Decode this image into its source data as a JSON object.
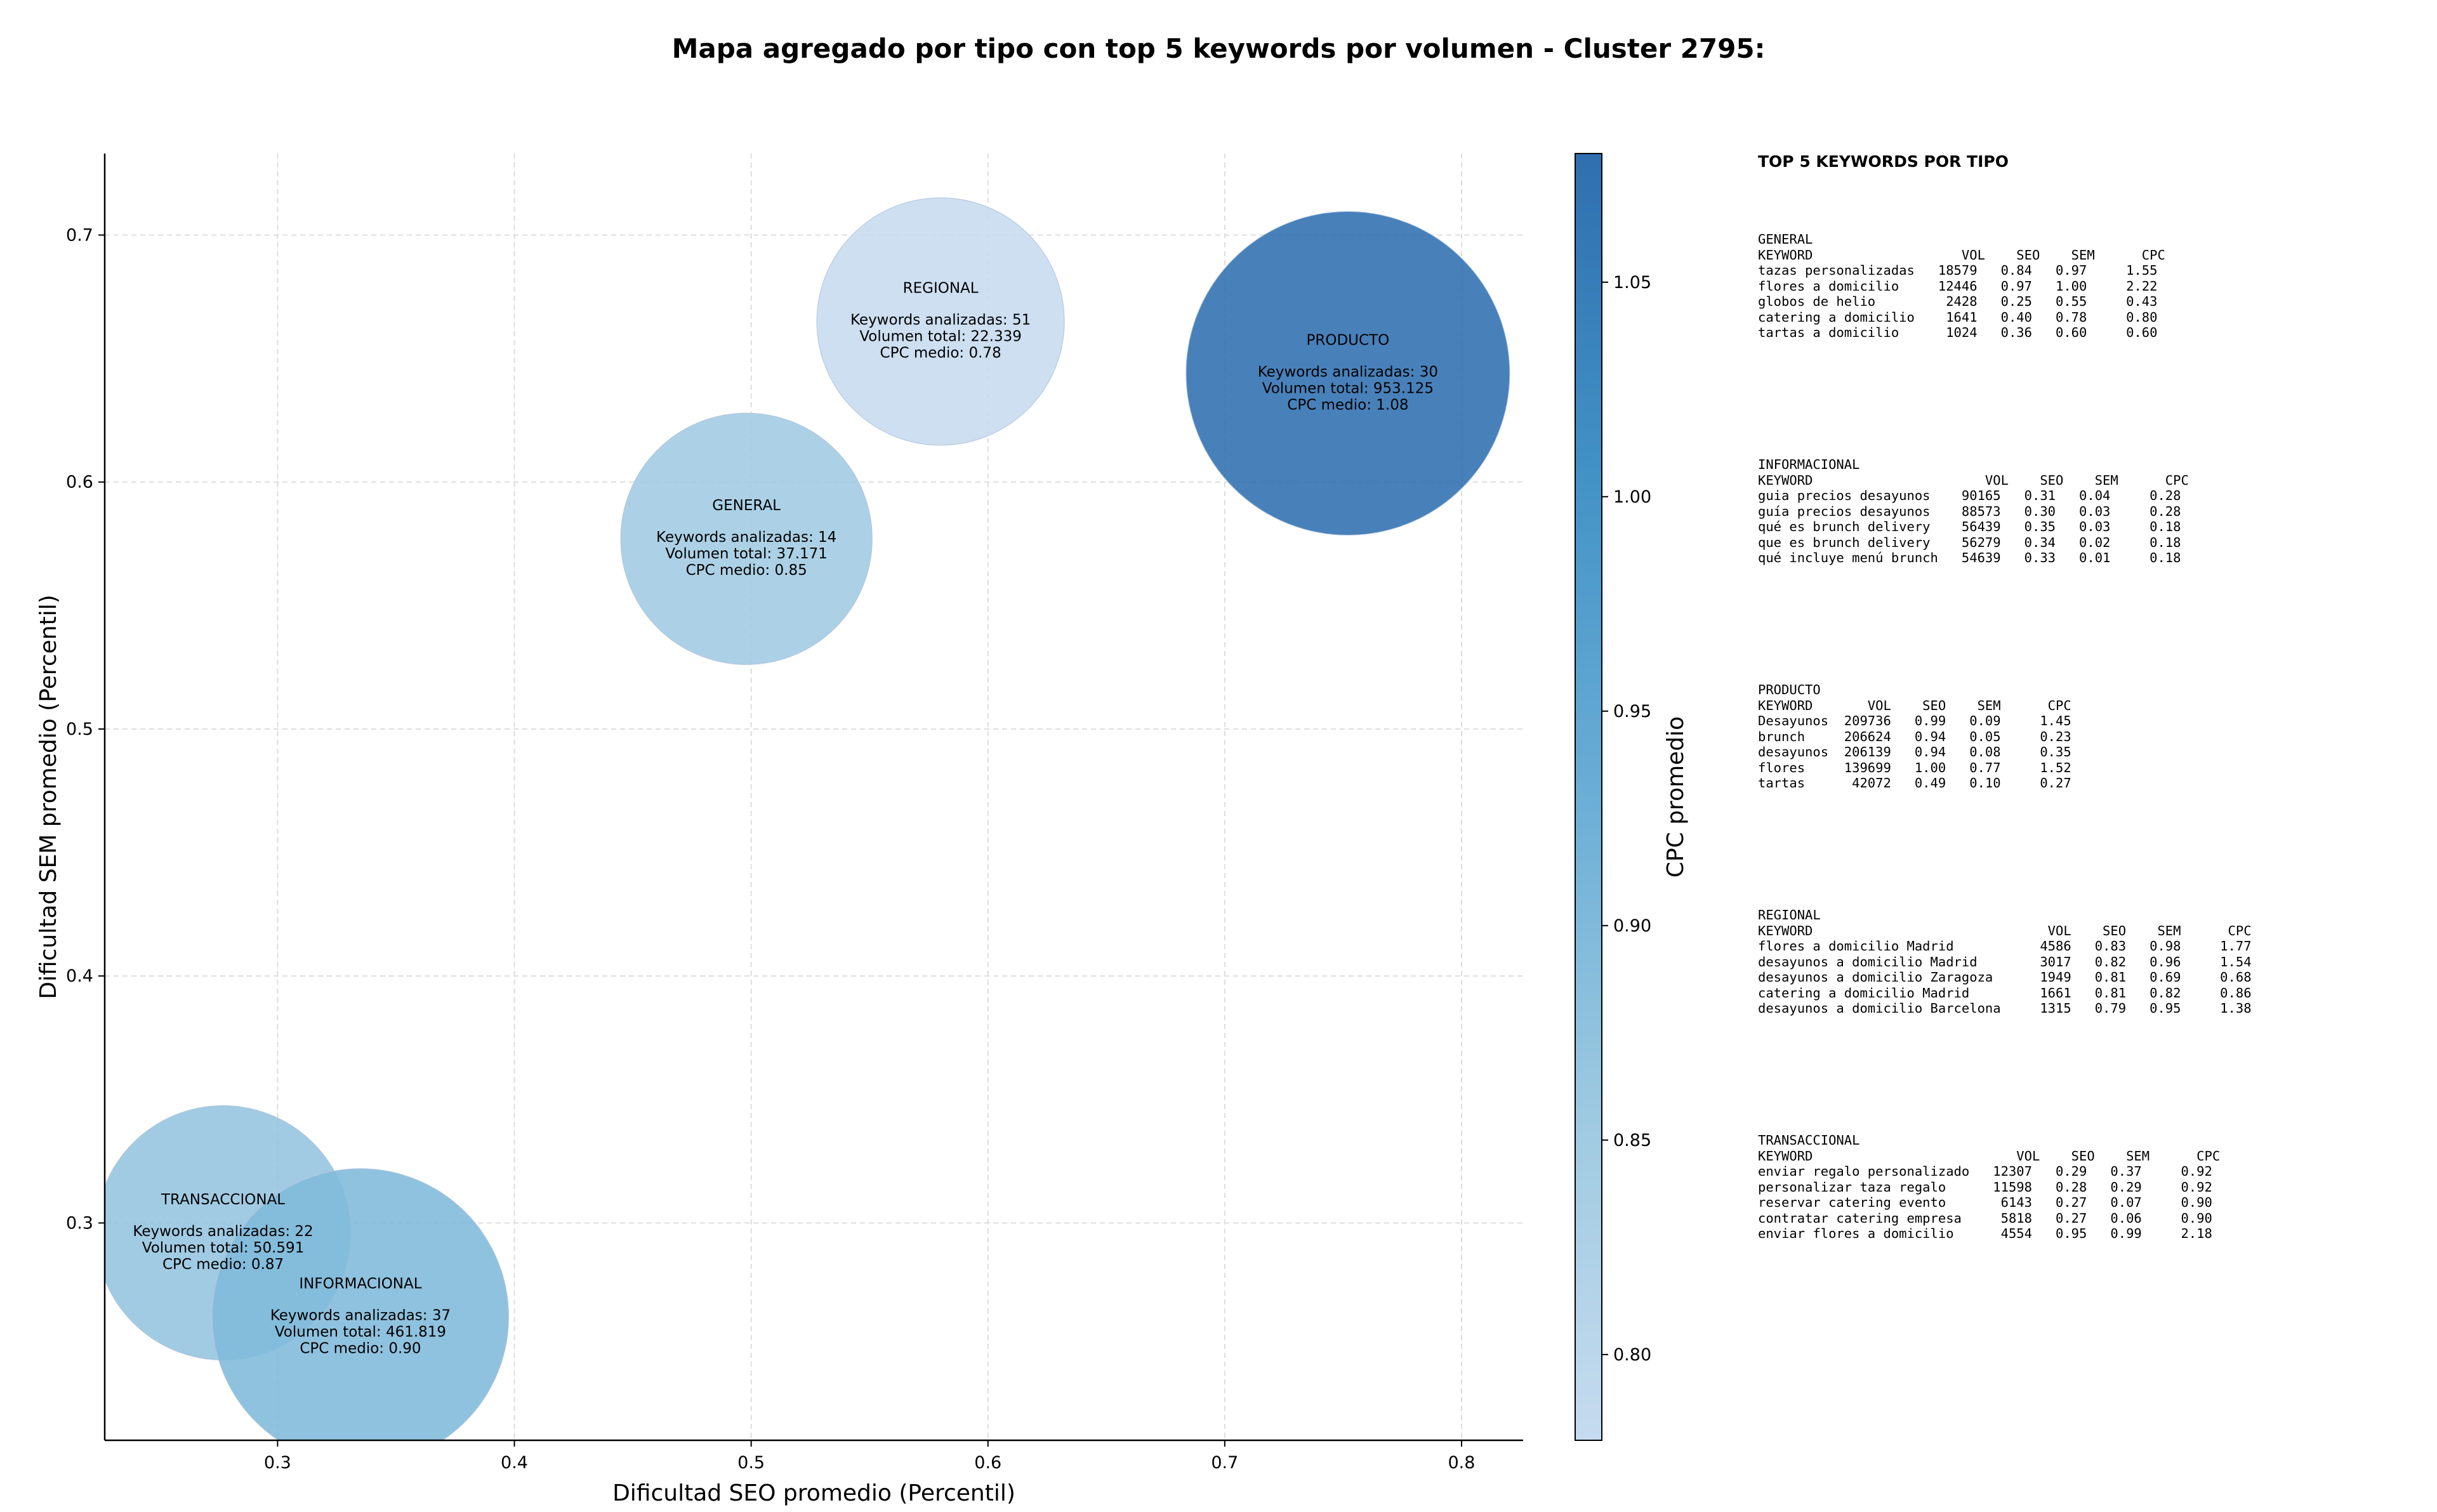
{
  "title": "Mapa agregado por tipo con top 5 keywords por volumen - Cluster 2795:",
  "chart_data": {
    "type": "scatter",
    "subtype": "bubble",
    "title": "Mapa agregado por tipo con top 5 keywords por volumen - Cluster 2795:",
    "xlabel": "Dificultad SEO promedio (Percentil)",
    "ylabel": "Dificultad SEM promedio (Percentil)",
    "xlim": [
      0.227,
      0.826
    ],
    "ylim": [
      0.212,
      0.733
    ],
    "xticks": [
      "0.3",
      "0.4",
      "0.5",
      "0.6",
      "0.7",
      "0.8"
    ],
    "yticks": [
      "0.3",
      "0.4",
      "0.5",
      "0.6",
      "0.7"
    ],
    "grid": true,
    "colorbar": {
      "label": "CPC promedio",
      "range": [
        0.78,
        1.08
      ],
      "ticks": [
        "0.80",
        "0.85",
        "0.90",
        "0.95",
        "1.00",
        "1.05"
      ],
      "colors": [
        "#c6dbef",
        "#9ecae1",
        "#6baed6",
        "#4292c6",
        "#2f6fb0"
      ]
    },
    "bubbles": [
      {
        "name": "TRANSACCIONAL",
        "x": 0.277,
        "y": 0.296,
        "keywords_line": "Keywords analizadas: 22",
        "volume_line": "Volumen total: 50.591",
        "cpc_line": "CPC medio: 0.87",
        "cpc": 0.87,
        "volume": 50591
      },
      {
        "name": "INFORMACIONAL",
        "x": 0.335,
        "y": 0.262,
        "keywords_line": "Keywords analizadas: 37",
        "volume_line": "Volumen total: 461.819",
        "cpc_line": "CPC medio: 0.90",
        "cpc": 0.9,
        "volume": 461819
      },
      {
        "name": "GENERAL",
        "x": 0.498,
        "y": 0.577,
        "keywords_line": "Keywords analizadas: 14",
        "volume_line": "Volumen total: 37.171",
        "cpc_line": "CPC medio: 0.85",
        "cpc": 0.85,
        "volume": 37171
      },
      {
        "name": "REGIONAL",
        "x": 0.58,
        "y": 0.665,
        "keywords_line": "Keywords analizadas: 51",
        "volume_line": "Volumen total: 22.339",
        "cpc_line": "CPC medio: 0.78",
        "cpc": 0.78,
        "volume": 22339
      },
      {
        "name": "PRODUCTO",
        "x": 0.752,
        "y": 0.644,
        "keywords_line": "Keywords analizadas: 30",
        "volume_line": "Volumen total: 953.125",
        "cpc_line": "CPC medio: 1.08",
        "cpc": 1.08,
        "volume": 953125
      }
    ]
  },
  "tables": {
    "heading": "TOP 5 KEYWORDS POR TIPO",
    "blocks": [
      {
        "type": "GENERAL",
        "lines": [
          "KEYWORD                   VOL    SEO    SEM      CPC",
          "tazas personalizadas   18579   0.84   0.97     1.55",
          "flores a domicilio     12446   0.97   1.00     2.22",
          "globos de helio         2428   0.25   0.55     0.43",
          "catering a domicilio    1641   0.40   0.78     0.80",
          "tartas a domicilio      1024   0.36   0.60     0.60"
        ]
      },
      {
        "type": "INFORMACIONAL",
        "lines": [
          "KEYWORD                      VOL    SEO    SEM      CPC",
          "guia precios desayunos    90165   0.31   0.04     0.28",
          "guía precios desayunos    88573   0.30   0.03     0.28",
          "qué es brunch delivery    56439   0.35   0.03     0.18",
          "que es brunch delivery    56279   0.34   0.02     0.18",
          "qué incluye menú brunch   54639   0.33   0.01     0.18"
        ]
      },
      {
        "type": "PRODUCTO",
        "lines": [
          "KEYWORD       VOL    SEO    SEM      CPC",
          "Desayunos  209736   0.99   0.09     1.45",
          "brunch     206624   0.94   0.05     0.23",
          "desayunos  206139   0.94   0.08     0.35",
          "flores     139699   1.00   0.77     1.52",
          "tartas      42072   0.49   0.10     0.27"
        ]
      },
      {
        "type": "REGIONAL",
        "lines": [
          "KEYWORD                              VOL    SEO    SEM      CPC",
          "flores a domicilio Madrid           4586   0.83   0.98     1.77",
          "desayunos a domicilio Madrid        3017   0.82   0.96     1.54",
          "desayunos a domicilio Zaragoza      1949   0.81   0.69     0.68",
          "catering a domicilio Madrid         1661   0.81   0.82     0.86",
          "desayunos a domicilio Barcelona     1315   0.79   0.95     1.38"
        ]
      },
      {
        "type": "TRANSACCIONAL",
        "lines": [
          "KEYWORD                          VOL    SEO    SEM      CPC",
          "enviar regalo personalizado   12307   0.29   0.37     0.92",
          "personalizar taza regalo      11598   0.28   0.29     0.92",
          "reservar catering evento       6143   0.27   0.07     0.90",
          "contratar catering empresa     5818   0.27   0.06     0.90",
          "enviar flores a domicilio      4554   0.95   0.99     2.18"
        ]
      }
    ]
  }
}
